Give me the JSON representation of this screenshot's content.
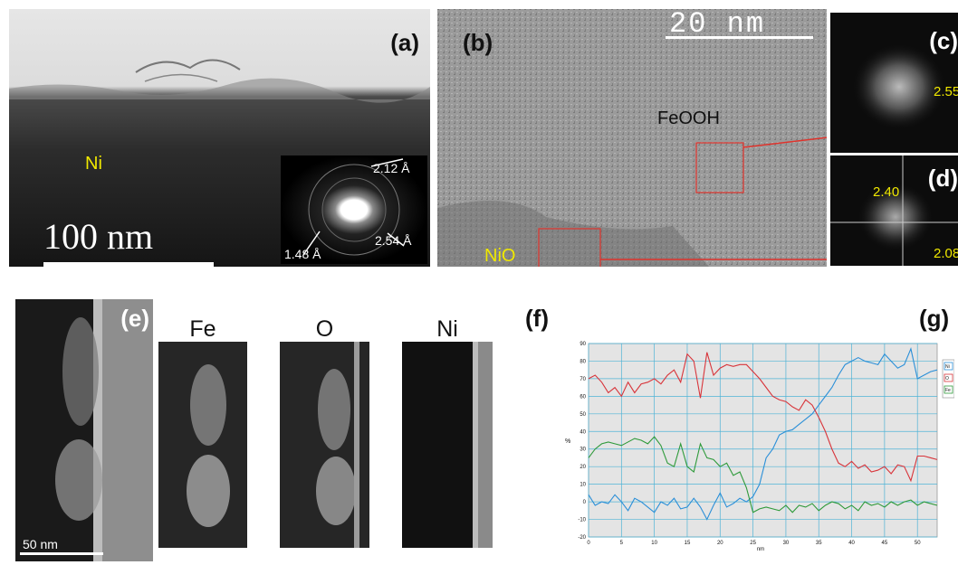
{
  "panels": {
    "a": {
      "label": "(a)",
      "material": "Ni",
      "scale_text": "100 nm",
      "saed": {
        "d1": "2.12 Å",
        "d2": "1.48 Å",
        "d3": "2.54 Å"
      }
    },
    "b": {
      "label": "(b)",
      "scale_text": "20 nm",
      "region_top": "FeOOH",
      "region_bottom": "NiO"
    },
    "c": {
      "label": "(c)",
      "spacing": "2.55"
    },
    "d": {
      "label": "(d)",
      "spacing_1": "2.40",
      "spacing_2": "2.08"
    },
    "e": {
      "label": "(e)",
      "scale_text": "50 nm"
    },
    "maps": {
      "fe": "Fe",
      "o": "O",
      "ni": "Ni"
    },
    "f": {
      "label": "(f)"
    },
    "g": {
      "label": "(g)"
    }
  },
  "chart_data": {
    "type": "line",
    "xlabel": "nm",
    "ylabel": "%",
    "xlim": [
      0,
      53
    ],
    "ylim": [
      -20,
      90
    ],
    "xticks": [
      0,
      5,
      10,
      15,
      20,
      25,
      30,
      35,
      40,
      45,
      50
    ],
    "yticks": [
      -20,
      -10,
      0,
      10,
      20,
      30,
      40,
      50,
      60,
      70,
      80,
      90
    ],
    "grid": true,
    "legend_position": "right",
    "x": [
      0,
      1,
      2,
      3,
      4,
      5,
      6,
      7,
      8,
      9,
      10,
      11,
      12,
      13,
      14,
      15,
      16,
      17,
      18,
      19,
      20,
      21,
      22,
      23,
      24,
      25,
      26,
      27,
      28,
      29,
      30,
      31,
      32,
      33,
      34,
      35,
      36,
      37,
      38,
      39,
      40,
      41,
      42,
      43,
      44,
      45,
      46,
      47,
      48,
      49,
      50,
      51,
      52,
      53
    ],
    "series": [
      {
        "name": "Ni",
        "color": "#2a8fd8",
        "values": [
          4,
          -2,
          0,
          -1,
          4,
          0,
          -5,
          2,
          0,
          -3,
          -6,
          0,
          -2,
          2,
          -4,
          -3,
          2,
          -3,
          -10,
          -2,
          5,
          -3,
          -1,
          2,
          0,
          3,
          10,
          25,
          30,
          38,
          40,
          41,
          44,
          47,
          50,
          55,
          60,
          65,
          72,
          78,
          80,
          82,
          80,
          79,
          78,
          84,
          80,
          76,
          78,
          87,
          70,
          72,
          74,
          75
        ]
      },
      {
        "name": "O",
        "color": "#d8343a",
        "values": [
          70,
          72,
          68,
          62,
          65,
          60,
          68,
          62,
          67,
          68,
          70,
          67,
          72,
          75,
          68,
          84,
          80,
          59,
          85,
          72,
          76,
          78,
          77,
          78,
          78,
          74,
          70,
          65,
          60,
          58,
          57,
          54,
          52,
          58,
          55,
          48,
          40,
          30,
          22,
          20,
          23,
          19,
          21,
          17,
          18,
          20,
          16,
          21,
          20,
          12,
          26,
          26,
          25,
          24
        ]
      },
      {
        "name": "Fe",
        "color": "#2e9a3a",
        "values": [
          25,
          30,
          33,
          34,
          33,
          32,
          34,
          36,
          35,
          33,
          37,
          32,
          22,
          20,
          33,
          20,
          17,
          33,
          25,
          24,
          20,
          22,
          15,
          17,
          8,
          -6,
          -4,
          -3,
          -4,
          -5,
          -2,
          -6,
          -2,
          -3,
          -1,
          -5,
          -2,
          0,
          -1,
          -4,
          -2,
          -5,
          0,
          -2,
          -1,
          -3,
          0,
          -2,
          0,
          1,
          -2,
          0,
          -1,
          -2
        ]
      }
    ]
  }
}
